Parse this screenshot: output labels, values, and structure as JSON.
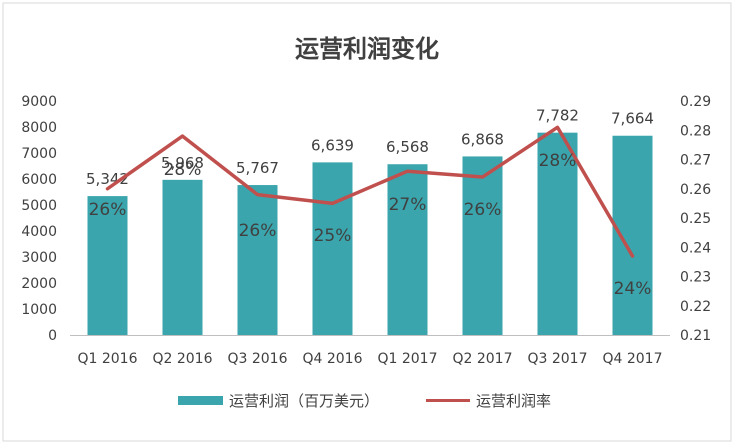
{
  "chart_data": {
    "type": "bar",
    "title": "运营利润变化",
    "categories": [
      "Q1 2016",
      "Q2 2016",
      "Q3 2016",
      "Q4 2016",
      "Q1 2017",
      "Q2 2017",
      "Q3 2017",
      "Q4 2017"
    ],
    "series": [
      {
        "name": "运营利润（百万美元）",
        "type": "bar",
        "axis": "left",
        "values": [
          5342,
          5968,
          5767,
          6639,
          6568,
          6868,
          7782,
          7664
        ],
        "value_labels": [
          "5,342",
          "5,968",
          "5,767",
          "6,639",
          "6,568",
          "6,868",
          "7,782",
          "7,664"
        ],
        "color": "#3aa5ad"
      },
      {
        "name": "运营利润率",
        "type": "line",
        "axis": "right",
        "values": [
          0.26,
          0.278,
          0.258,
          0.255,
          0.266,
          0.264,
          0.281,
          0.237
        ],
        "pct_labels": [
          "26%",
          "28%",
          "26%",
          "25%",
          "27%",
          "26%",
          "28%",
          "24%"
        ],
        "color": "#c0504d"
      }
    ],
    "y_left": {
      "min": 0,
      "max": 9000,
      "step": 1000,
      "ticks": [
        "0",
        "1000",
        "2000",
        "3000",
        "4000",
        "5000",
        "6000",
        "7000",
        "8000",
        "9000"
      ]
    },
    "y_right": {
      "min": 0.21,
      "max": 0.29,
      "step": 0.01,
      "ticks": [
        "0.21",
        "0.22",
        "0.23",
        "0.24",
        "0.25",
        "0.26",
        "0.27",
        "0.28",
        "0.29"
      ]
    },
    "legend_position": "bottom",
    "grid": false
  }
}
